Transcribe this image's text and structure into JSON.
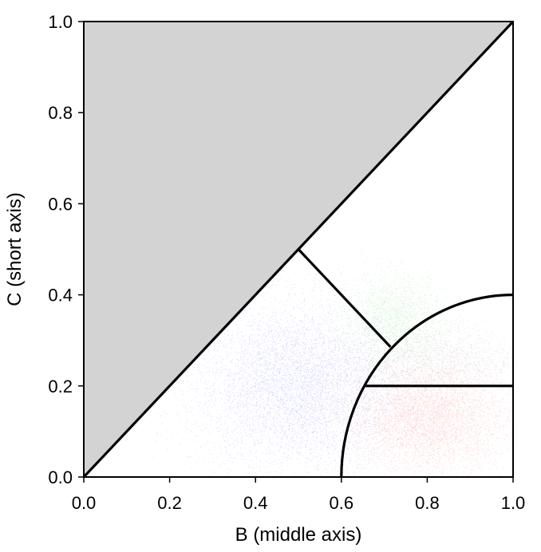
{
  "chart_data": {
    "type": "scatter",
    "title": "",
    "xlabel": "B (middle axis)",
    "ylabel": "C (short axis)",
    "xlim": [
      0.0,
      1.0
    ],
    "ylim": [
      0.0,
      1.0
    ],
    "xticks": [
      "0.0",
      "0.2",
      "0.4",
      "0.6",
      "0.8",
      "1.0"
    ],
    "yticks": [
      "0.0",
      "0.2",
      "0.4",
      "0.6",
      "0.8",
      "1.0"
    ],
    "grid": false,
    "legend": "none",
    "excluded_region": {
      "description_color": "#d3d3d3",
      "vertices": [
        [
          0.0,
          0.0
        ],
        [
          0.0,
          1.0
        ],
        [
          1.0,
          1.0
        ]
      ]
    },
    "boundary_lines": [
      {
        "name": "diagonal",
        "points": [
          [
            0.0,
            0.0
          ],
          [
            1.0,
            1.0
          ]
        ]
      },
      {
        "name": "perpendicular",
        "points": [
          [
            0.5,
            0.5
          ],
          [
            0.7143,
            0.2857
          ]
        ]
      },
      {
        "name": "horizontal",
        "points": [
          [
            0.6536,
            0.2
          ],
          [
            1.0,
            0.2
          ]
        ]
      }
    ],
    "boundary_arc": {
      "center": [
        1.0,
        0.0
      ],
      "rx": 0.4,
      "ry": 0.4,
      "from_deg": 90,
      "to_deg": 180
    },
    "series": [
      {
        "color": "#0000ff",
        "center": [
          0.5,
          0.2
        ],
        "spread": [
          0.12,
          0.09
        ],
        "count": 9000
      },
      {
        "color": "#ff0000",
        "center": [
          0.8,
          0.13
        ],
        "spread": [
          0.09,
          0.06
        ],
        "count": 5000
      },
      {
        "color": "#00cc00",
        "center": [
          0.72,
          0.35
        ],
        "spread": [
          0.06,
          0.05
        ],
        "count": 2200
      },
      {
        "color": "#555555",
        "center": [
          0.82,
          0.26
        ],
        "spread": [
          0.09,
          0.04
        ],
        "count": 1600
      }
    ]
  }
}
